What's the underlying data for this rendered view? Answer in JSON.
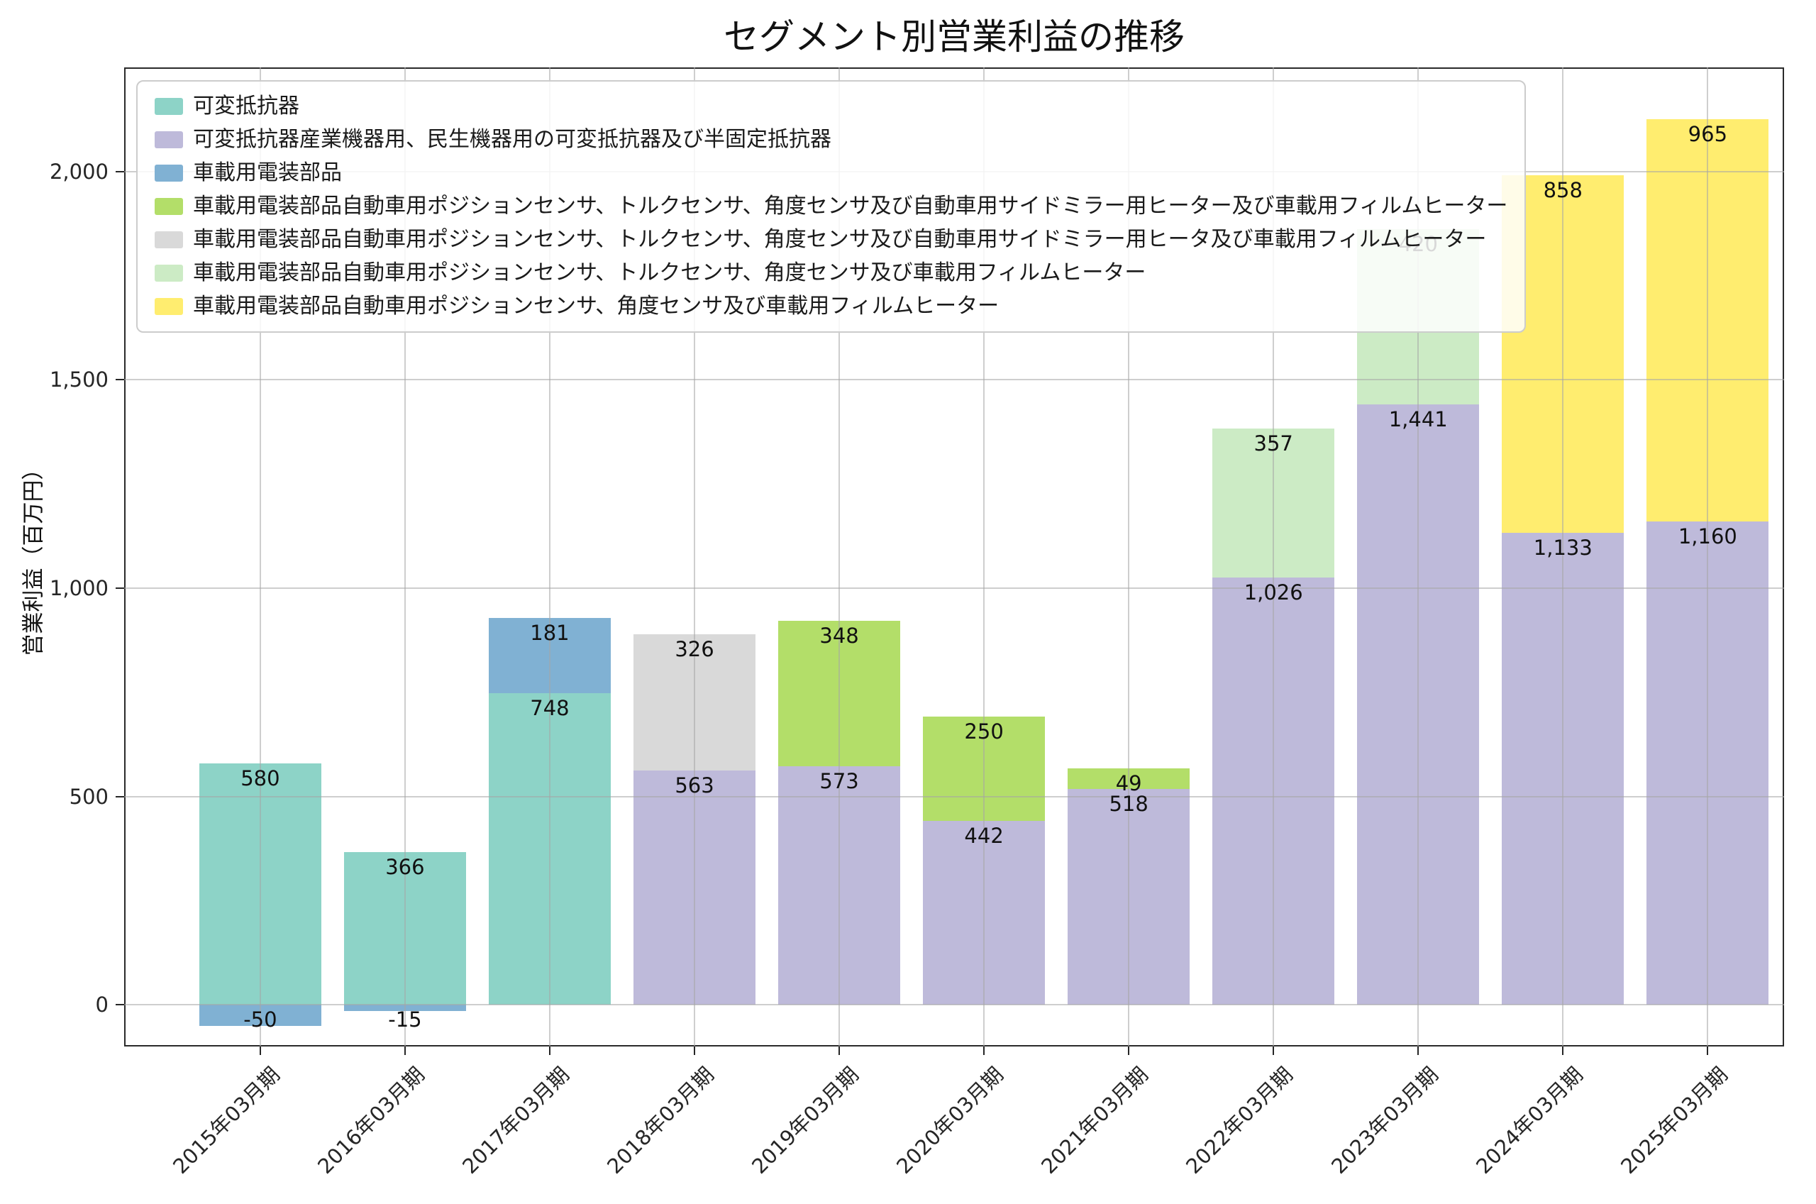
{
  "chart_data": {
    "type": "bar",
    "stacked": true,
    "title": "セグメント別営業利益の推移",
    "xlabel": "",
    "ylabel": "営業利益（百万円）",
    "ylim": [
      -100,
      2250
    ],
    "grid": true,
    "legend_position": "upper left",
    "categories": [
      "2015年03月期",
      "2016年03月期",
      "2017年03月期",
      "2018年03月期",
      "2019年03月期",
      "2020年03月期",
      "2021年03月期",
      "2022年03月期",
      "2023年03月期",
      "2024年03月期",
      "2025年03月期"
    ],
    "yticks": [
      "0",
      "500",
      "1,000",
      "1,500",
      "2,000"
    ],
    "ytick_values": [
      0,
      500,
      1000,
      1500,
      2000
    ],
    "series": [
      {
        "name": "可変抵抗器",
        "color": "#8dd3c7",
        "values": [
          580,
          366,
          748,
          null,
          null,
          null,
          null,
          null,
          null,
          null,
          null
        ]
      },
      {
        "name": "可変抵抗器産業機器用、民生機器用の可変抵抗器及び半固定抵抗器",
        "color": "#bebada",
        "values": [
          null,
          null,
          null,
          563,
          573,
          442,
          518,
          1026,
          1441,
          1133,
          1160
        ]
      },
      {
        "name": "車載用電装部品",
        "color": "#80b1d3",
        "values": [
          -50,
          -15,
          181,
          null,
          null,
          null,
          null,
          null,
          null,
          null,
          null
        ]
      },
      {
        "name": "車載用電装部品自動車用ポジションセンサ、トルクセンサ、角度センサ及び自動車用サイドミラー用ヒーター及び車載用フィルムヒーター",
        "color": "#b3de69",
        "values": [
          null,
          null,
          null,
          null,
          348,
          250,
          49,
          null,
          null,
          null,
          null
        ]
      },
      {
        "name": "車載用電装部品自動車用ポジションセンサ、トルクセンサ、角度センサ及び自動車用サイドミラー用ヒータ及び車載用フィルムヒーター",
        "color": "#d9d9d9",
        "values": [
          null,
          null,
          null,
          326,
          null,
          null,
          null,
          null,
          null,
          null,
          null
        ]
      },
      {
        "name": "車載用電装部品自動車用ポジションセンサ、トルクセンサ、角度センサ及び車載用フィルムヒーター",
        "color": "#ccebc5",
        "values": [
          null,
          null,
          null,
          null,
          null,
          null,
          null,
          357,
          420,
          null,
          null
        ]
      },
      {
        "name": "車載用電装部品自動車用ポジションセンサ、角度センサ及び車載用フィルムヒーター",
        "color": "#ffed6f",
        "values": [
          null,
          null,
          null,
          null,
          null,
          null,
          null,
          null,
          null,
          858,
          965
        ]
      }
    ]
  }
}
